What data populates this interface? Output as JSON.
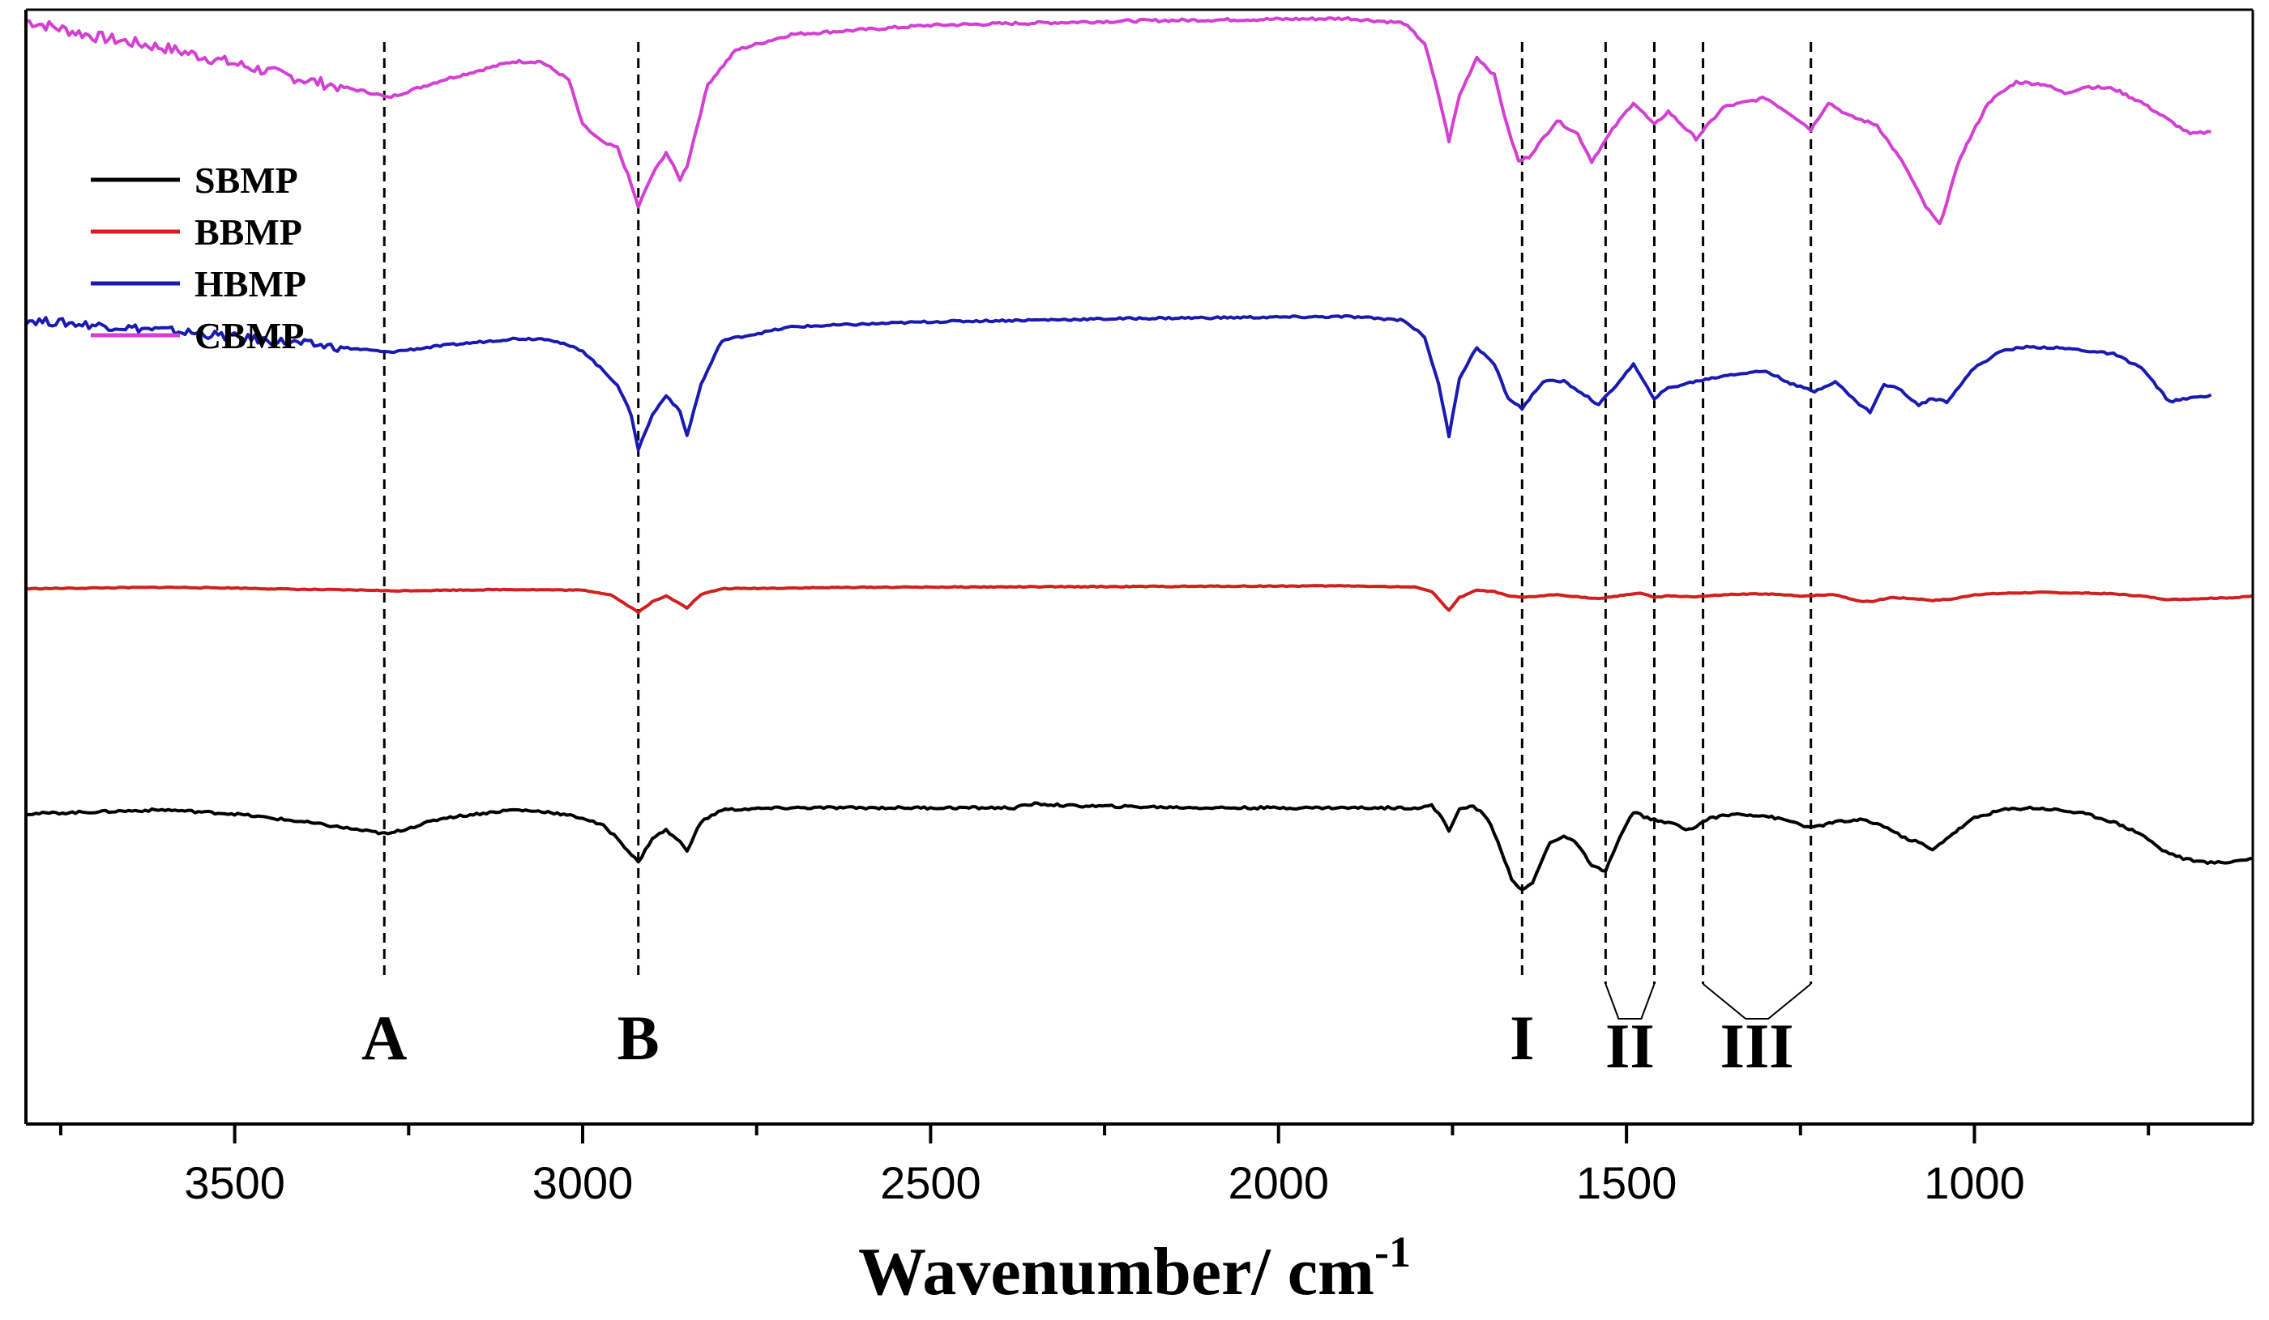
{
  "chart_data": {
    "type": "line",
    "title": "",
    "xlabel": "Wavenumber/ cm",
    "xlabel_superscript": "-1",
    "ylabel": "",
    "xlim": [
      3800,
      600
    ],
    "x_reversed": true,
    "y_axis_ticks": false,
    "xticks": [
      3500,
      3000,
      2500,
      2000,
      1500,
      1000
    ],
    "legend": {
      "placement": "top-left",
      "entries": [
        {
          "name": "SBMP",
          "color": "#000000"
        },
        {
          "name": "BBMP",
          "color": "#d02020"
        },
        {
          "name": "HBMP",
          "color": "#1a1ab0"
        },
        {
          "name": "CBMP",
          "color": "#d43fd4"
        }
      ]
    },
    "series": [
      {
        "name": "CBMP",
        "color": "#d43fd4",
        "offset": 3.0,
        "points": [
          [
            3800,
            0.98
          ],
          [
            3700,
            0.91
          ],
          [
            3600,
            0.86
          ],
          [
            3500,
            0.79
          ],
          [
            3400,
            0.72
          ],
          [
            3300,
            0.66
          ],
          [
            3280,
            0.64
          ],
          [
            3200,
            0.72
          ],
          [
            3100,
            0.8
          ],
          [
            3060,
            0.8
          ],
          [
            3020,
            0.72
          ],
          [
            3000,
            0.52
          ],
          [
            2970,
            0.44
          ],
          [
            2950,
            0.42
          ],
          [
            2935,
            0.3
          ],
          [
            2920,
            0.16
          ],
          [
            2900,
            0.3
          ],
          [
            2880,
            0.4
          ],
          [
            2860,
            0.28
          ],
          [
            2850,
            0.34
          ],
          [
            2820,
            0.7
          ],
          [
            2780,
            0.85
          ],
          [
            2700,
            0.92
          ],
          [
            2500,
            0.96
          ],
          [
            2200,
            0.98
          ],
          [
            1900,
            0.99
          ],
          [
            1820,
            0.97
          ],
          [
            1790,
            0.88
          ],
          [
            1770,
            0.65
          ],
          [
            1755,
            0.45
          ],
          [
            1740,
            0.65
          ],
          [
            1715,
            0.82
          ],
          [
            1690,
            0.74
          ],
          [
            1670,
            0.5
          ],
          [
            1655,
            0.36
          ],
          [
            1640,
            0.38
          ],
          [
            1600,
            0.54
          ],
          [
            1570,
            0.48
          ],
          [
            1550,
            0.36
          ],
          [
            1520,
            0.5
          ],
          [
            1490,
            0.62
          ],
          [
            1460,
            0.52
          ],
          [
            1440,
            0.58
          ],
          [
            1400,
            0.46
          ],
          [
            1360,
            0.6
          ],
          [
            1300,
            0.64
          ],
          [
            1260,
            0.56
          ],
          [
            1235,
            0.5
          ],
          [
            1210,
            0.62
          ],
          [
            1180,
            0.56
          ],
          [
            1140,
            0.52
          ],
          [
            1100,
            0.34
          ],
          [
            1070,
            0.16
          ],
          [
            1050,
            0.08
          ],
          [
            1020,
            0.38
          ],
          [
            980,
            0.62
          ],
          [
            940,
            0.71
          ],
          [
            900,
            0.7
          ],
          [
            870,
            0.66
          ],
          [
            840,
            0.69
          ],
          [
            800,
            0.68
          ],
          [
            760,
            0.62
          ],
          [
            720,
            0.54
          ],
          [
            690,
            0.48
          ],
          [
            660,
            0.49
          ]
        ]
      },
      {
        "name": "HBMP",
        "color": "#1a1ab0",
        "offset": 2.0,
        "points": [
          [
            3800,
            0.88
          ],
          [
            3700,
            0.85
          ],
          [
            3600,
            0.82
          ],
          [
            3500,
            0.78
          ],
          [
            3400,
            0.74
          ],
          [
            3300,
            0.7
          ],
          [
            3280,
            0.69
          ],
          [
            3200,
            0.73
          ],
          [
            3100,
            0.77
          ],
          [
            3050,
            0.77
          ],
          [
            3000,
            0.7
          ],
          [
            2970,
            0.58
          ],
          [
            2950,
            0.5
          ],
          [
            2930,
            0.32
          ],
          [
            2920,
            0.12
          ],
          [
            2900,
            0.32
          ],
          [
            2880,
            0.44
          ],
          [
            2860,
            0.34
          ],
          [
            2850,
            0.2
          ],
          [
            2830,
            0.5
          ],
          [
            2800,
            0.76
          ],
          [
            2700,
            0.84
          ],
          [
            2500,
            0.87
          ],
          [
            2200,
            0.89
          ],
          [
            1900,
            0.9
          ],
          [
            1820,
            0.88
          ],
          [
            1790,
            0.78
          ],
          [
            1770,
            0.5
          ],
          [
            1755,
            0.2
          ],
          [
            1740,
            0.54
          ],
          [
            1715,
            0.72
          ],
          [
            1690,
            0.62
          ],
          [
            1670,
            0.42
          ],
          [
            1650,
            0.36
          ],
          [
            1620,
            0.52
          ],
          [
            1590,
            0.52
          ],
          [
            1560,
            0.44
          ],
          [
            1540,
            0.38
          ],
          [
            1510,
            0.52
          ],
          [
            1490,
            0.62
          ],
          [
            1470,
            0.48
          ],
          [
            1460,
            0.42
          ],
          [
            1440,
            0.48
          ],
          [
            1400,
            0.52
          ],
          [
            1350,
            0.56
          ],
          [
            1300,
            0.58
          ],
          [
            1260,
            0.5
          ],
          [
            1230,
            0.46
          ],
          [
            1200,
            0.52
          ],
          [
            1170,
            0.4
          ],
          [
            1150,
            0.34
          ],
          [
            1130,
            0.5
          ],
          [
            1110,
            0.48
          ],
          [
            1080,
            0.38
          ],
          [
            1060,
            0.42
          ],
          [
            1040,
            0.4
          ],
          [
            1000,
            0.6
          ],
          [
            960,
            0.7
          ],
          [
            930,
            0.72
          ],
          [
            900,
            0.72
          ],
          [
            860,
            0.71
          ],
          [
            800,
            0.68
          ],
          [
            760,
            0.6
          ],
          [
            720,
            0.4
          ],
          [
            690,
            0.42
          ],
          [
            660,
            0.44
          ]
        ]
      },
      {
        "name": "BBMP",
        "color": "#d02020",
        "offset": 1.0,
        "points": [
          [
            3800,
            0.7
          ],
          [
            3700,
            0.71
          ],
          [
            3600,
            0.72
          ],
          [
            3500,
            0.71
          ],
          [
            3400,
            0.69
          ],
          [
            3300,
            0.68
          ],
          [
            3280,
            0.67
          ],
          [
            3200,
            0.68
          ],
          [
            3100,
            0.69
          ],
          [
            3000,
            0.68
          ],
          [
            2960,
            0.62
          ],
          [
            2940,
            0.5
          ],
          [
            2920,
            0.38
          ],
          [
            2900,
            0.52
          ],
          [
            2880,
            0.6
          ],
          [
            2860,
            0.5
          ],
          [
            2850,
            0.44
          ],
          [
            2830,
            0.62
          ],
          [
            2800,
            0.7
          ],
          [
            2600,
            0.72
          ],
          [
            2200,
            0.73
          ],
          [
            1900,
            0.74
          ],
          [
            1800,
            0.72
          ],
          [
            1780,
            0.66
          ],
          [
            1770,
            0.56
          ],
          [
            1755,
            0.4
          ],
          [
            1740,
            0.58
          ],
          [
            1715,
            0.68
          ],
          [
            1690,
            0.66
          ],
          [
            1670,
            0.6
          ],
          [
            1650,
            0.58
          ],
          [
            1600,
            0.62
          ],
          [
            1560,
            0.58
          ],
          [
            1540,
            0.56
          ],
          [
            1500,
            0.62
          ],
          [
            1480,
            0.64
          ],
          [
            1460,
            0.58
          ],
          [
            1440,
            0.6
          ],
          [
            1400,
            0.59
          ],
          [
            1350,
            0.62
          ],
          [
            1300,
            0.63
          ],
          [
            1250,
            0.6
          ],
          [
            1200,
            0.62
          ],
          [
            1170,
            0.54
          ],
          [
            1150,
            0.52
          ],
          [
            1120,
            0.58
          ],
          [
            1080,
            0.56
          ],
          [
            1060,
            0.54
          ],
          [
            1030,
            0.56
          ],
          [
            1000,
            0.62
          ],
          [
            950,
            0.64
          ],
          [
            900,
            0.65
          ],
          [
            850,
            0.64
          ],
          [
            800,
            0.63
          ],
          [
            760,
            0.6
          ],
          [
            720,
            0.55
          ],
          [
            690,
            0.56
          ],
          [
            660,
            0.57
          ],
          [
            620,
            0.58
          ],
          [
            600,
            0.6
          ]
        ]
      },
      {
        "name": "SBMP",
        "color": "#000000",
        "offset": 0.0,
        "points": [
          [
            3800,
            0.9
          ],
          [
            3700,
            0.91
          ],
          [
            3600,
            0.92
          ],
          [
            3500,
            0.9
          ],
          [
            3400,
            0.86
          ],
          [
            3320,
            0.82
          ],
          [
            3280,
            0.8
          ],
          [
            3200,
            0.88
          ],
          [
            3100,
            0.92
          ],
          [
            3050,
            0.91
          ],
          [
            3000,
            0.88
          ],
          [
            2970,
            0.84
          ],
          [
            2950,
            0.78
          ],
          [
            2930,
            0.7
          ],
          [
            2920,
            0.66
          ],
          [
            2900,
            0.78
          ],
          [
            2880,
            0.82
          ],
          [
            2860,
            0.76
          ],
          [
            2850,
            0.72
          ],
          [
            2830,
            0.86
          ],
          [
            2800,
            0.92
          ],
          [
            2700,
            0.93
          ],
          [
            2500,
            0.93
          ],
          [
            2380,
            0.93
          ],
          [
            2350,
            0.95
          ],
          [
            2300,
            0.94
          ],
          [
            2100,
            0.93
          ],
          [
            1900,
            0.93
          ],
          [
            1800,
            0.93
          ],
          [
            1780,
            0.94
          ],
          [
            1765,
            0.88
          ],
          [
            1755,
            0.82
          ],
          [
            1740,
            0.92
          ],
          [
            1720,
            0.94
          ],
          [
            1700,
            0.88
          ],
          [
            1680,
            0.72
          ],
          [
            1665,
            0.58
          ],
          [
            1650,
            0.52
          ],
          [
            1635,
            0.56
          ],
          [
            1610,
            0.76
          ],
          [
            1590,
            0.79
          ],
          [
            1570,
            0.75
          ],
          [
            1550,
            0.64
          ],
          [
            1530,
            0.62
          ],
          [
            1510,
            0.78
          ],
          [
            1490,
            0.91
          ],
          [
            1470,
            0.88
          ],
          [
            1450,
            0.86
          ],
          [
            1430,
            0.85
          ],
          [
            1410,
            0.82
          ],
          [
            1380,
            0.88
          ],
          [
            1340,
            0.9
          ],
          [
            1300,
            0.89
          ],
          [
            1260,
            0.86
          ],
          [
            1235,
            0.83
          ],
          [
            1200,
            0.86
          ],
          [
            1160,
            0.87
          ],
          [
            1130,
            0.84
          ],
          [
            1100,
            0.78
          ],
          [
            1080,
            0.76
          ],
          [
            1060,
            0.72
          ],
          [
            1040,
            0.78
          ],
          [
            1000,
            0.88
          ],
          [
            960,
            0.92
          ],
          [
            920,
            0.93
          ],
          [
            880,
            0.92
          ],
          [
            840,
            0.9
          ],
          [
            800,
            0.86
          ],
          [
            760,
            0.8
          ],
          [
            730,
            0.72
          ],
          [
            700,
            0.68
          ],
          [
            670,
            0.66
          ],
          [
            640,
            0.66
          ],
          [
            600,
            0.68
          ]
        ]
      }
    ],
    "peak_markers": [
      {
        "label": "A",
        "x": 3285
      },
      {
        "label": "B",
        "x": 2920
      },
      {
        "label": "I",
        "x": 1650
      },
      {
        "label": "II",
        "x_range": [
          1530,
          1460
        ]
      },
      {
        "label": "III",
        "x_range": [
          1390,
          1235
        ]
      }
    ]
  }
}
